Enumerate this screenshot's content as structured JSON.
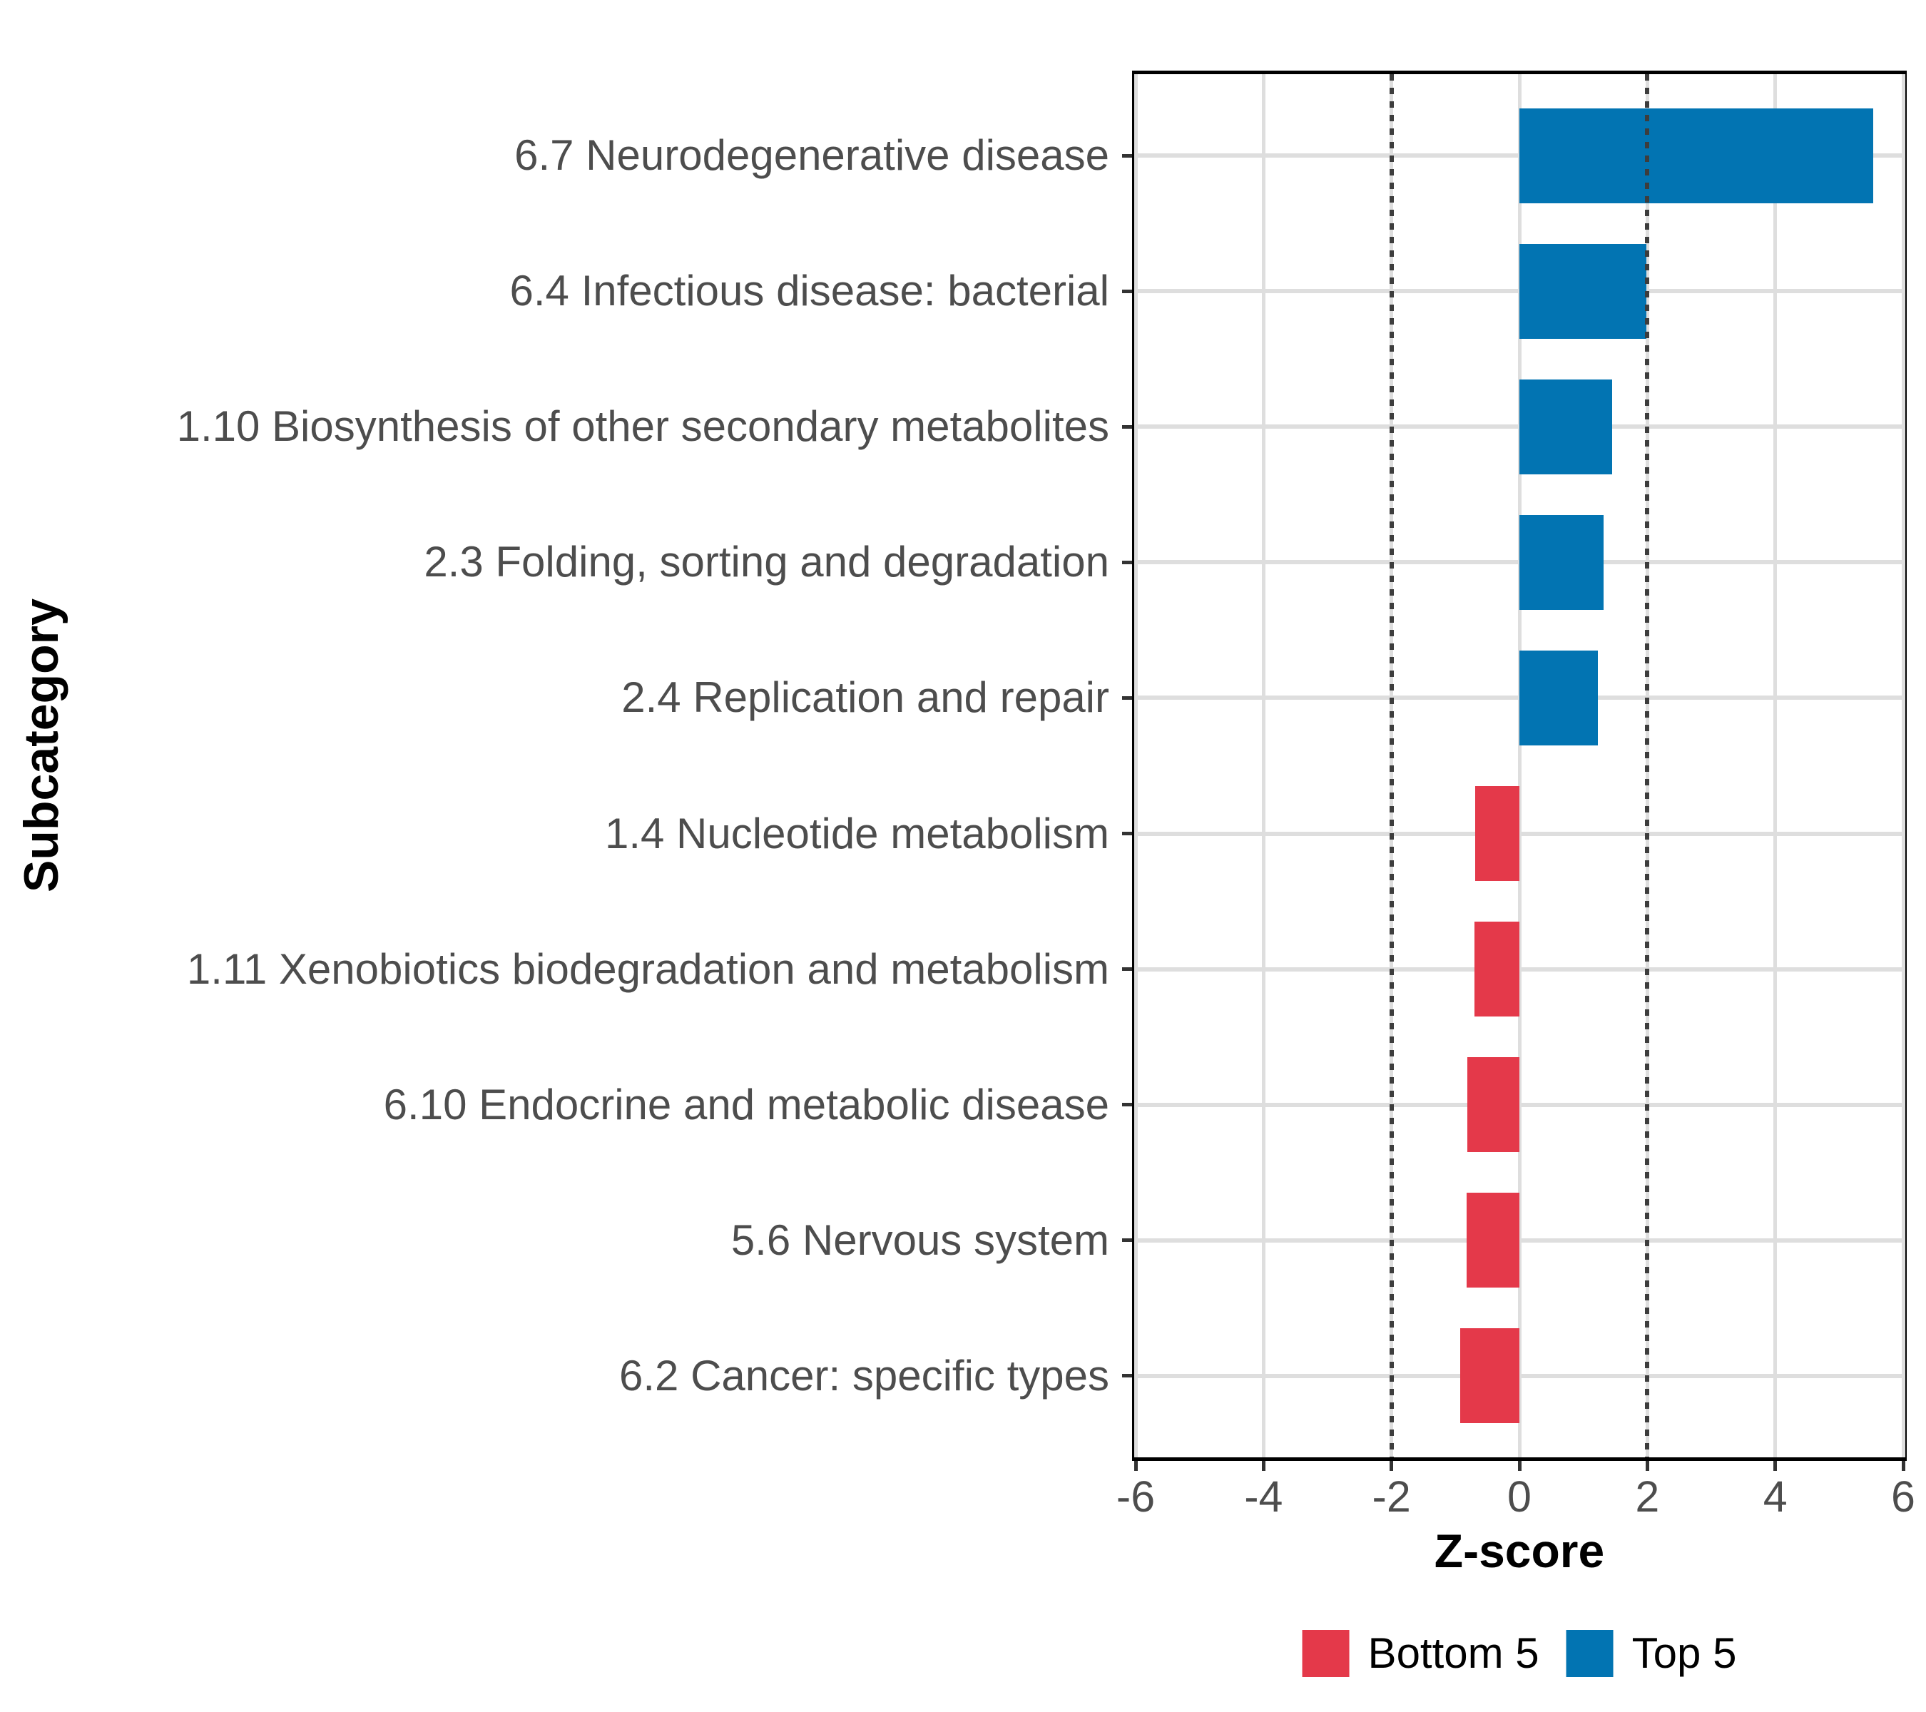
{
  "chart_data": {
    "type": "bar",
    "orientation": "horizontal",
    "title": "",
    "xlabel": "Z-score",
    "ylabel": "Subcategory",
    "xlim": [
      -6,
      6
    ],
    "xticks": [
      -6,
      -4,
      -2,
      0,
      2,
      4,
      6
    ],
    "reference_lines": [
      -2,
      2
    ],
    "grid": true,
    "legend_position": "bottom",
    "categories": [
      "6.7 Neurodegenerative disease",
      "6.4 Infectious disease: bacterial",
      "1.10 Biosynthesis of other secondary metabolites",
      "2.3 Folding, sorting and degradation",
      "2.4 Replication and repair",
      "1.4 Nucleotide metabolism",
      "1.11 Xenobiotics biodegradation and metabolism",
      "6.10 Endocrine and metabolic disease",
      "5.6 Nervous system",
      "6.2 Cancer: specific types"
    ],
    "values": [
      5.53,
      1.98,
      1.45,
      1.32,
      1.23,
      -0.69,
      -0.7,
      -0.81,
      -0.82,
      -0.93
    ],
    "groups": [
      "Top 5",
      "Top 5",
      "Top 5",
      "Top 5",
      "Top 5",
      "Bottom 5",
      "Bottom 5",
      "Bottom 5",
      "Bottom 5",
      "Bottom 5"
    ],
    "legend": [
      {
        "label": "Bottom 5",
        "color": "#E4394A"
      },
      {
        "label": "Top 5",
        "color": "#0274B2"
      }
    ]
  },
  "style": {
    "bar_blue": "#0274B2",
    "bar_red": "#E4394A",
    "grid_color": "#DEDEDE",
    "ref_line_color": "#3D3D3D",
    "tick_color": "#333333",
    "axis_text_color": "#4D4D4D",
    "title_color": "#000000",
    "panel_border_color": "#000000",
    "background": "#FFFFFF"
  }
}
